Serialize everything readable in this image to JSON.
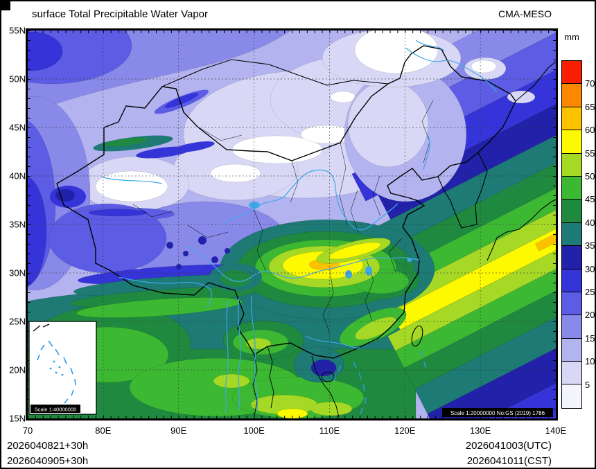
{
  "header": {
    "title": "surface Total Precipitable Water Vapor",
    "model": "CMA-MESO"
  },
  "colorbar": {
    "unit": "mm",
    "tick_labels_top_to_bottom": [
      "70",
      "65",
      "60",
      "55",
      "50",
      "45",
      "40",
      "35",
      "30",
      "25",
      "20",
      "15",
      "10",
      "5"
    ],
    "colors_top_to_bottom": [
      "#f81e00",
      "#fc8700",
      "#fcc200",
      "#fdf900",
      "#a6d926",
      "#3cb832",
      "#1f8a3f",
      "#1d7a74",
      "#2121aa",
      "#3434d8",
      "#5c5ce4",
      "#8989ea",
      "#b3b3ef",
      "#d8d8f6",
      "#f4f4fd"
    ]
  },
  "axes": {
    "x_labels": [
      "70",
      "80E",
      "90E",
      "100E",
      "110E",
      "120E",
      "130E",
      "140E"
    ],
    "y_labels": [
      "55N",
      "50N",
      "45N",
      "40N",
      "35N",
      "30N",
      "25N",
      "20N",
      "15N"
    ]
  },
  "footer": {
    "left_line1": "2026040821+30h",
    "left_line2": "2026040905+30h",
    "right_line1": "2026041003(UTC)",
    "right_line2": "2026041011(CST)"
  },
  "map_annotations": {
    "inset_scale": "Scale 1:40000000",
    "main_scale": "Scale 1:20000000 No:GS (2019) 1786"
  },
  "chart_data": {
    "type": "heatmap",
    "title": "surface Total Precipitable Water Vapor",
    "model": "CMA-MESO",
    "unit": "mm",
    "x_lon_deg": [
      70,
      80,
      90,
      100,
      110,
      120,
      130,
      140
    ],
    "y_lat_deg": [
      55,
      50,
      45,
      40,
      35,
      30,
      25,
      20,
      15
    ],
    "x_range": [
      70,
      140
    ],
    "y_range": [
      15,
      55
    ],
    "contour_levels_mm": [
      5,
      10,
      15,
      20,
      25,
      30,
      35,
      40,
      45,
      50,
      55,
      60,
      65,
      70
    ],
    "level_colors_low_to_high": [
      "#f4f4fd",
      "#d8d8f6",
      "#b3b3ef",
      "#8989ea",
      "#5c5ce4",
      "#3434d8",
      "#2121aa",
      "#1d7a74",
      "#1f8a3f",
      "#3cb832",
      "#a6d926",
      "#fdf900",
      "#fcc200",
      "#fc8700",
      "#f81e00"
    ],
    "approx_grid_values_mm": [
      [
        17,
        15,
        13,
        12,
        8,
        4,
        13,
        17
      ],
      [
        22,
        17,
        13,
        8,
        10,
        13,
        17,
        22
      ],
      [
        20,
        22,
        15,
        8,
        6,
        12,
        22,
        27
      ],
      [
        22,
        12,
        4,
        8,
        13,
        15,
        27,
        33
      ],
      [
        22,
        18,
        18,
        20,
        24,
        27,
        37,
        47
      ],
      [
        18,
        22,
        26,
        35,
        55,
        38,
        47,
        57
      ],
      [
        27,
        33,
        37,
        42,
        43,
        38,
        45,
        42
      ],
      [
        32,
        42,
        46,
        48,
        42,
        32,
        37,
        30
      ],
      [
        28,
        43,
        47,
        52,
        43,
        37,
        30,
        27
      ]
    ],
    "grid_note": "rows ordered 55N to 15N, columns 70E to 140E; values estimated from fill colors",
    "legend_position": "right",
    "grid": "dashed graticule every 10 deg lon and 5 deg lat"
  }
}
